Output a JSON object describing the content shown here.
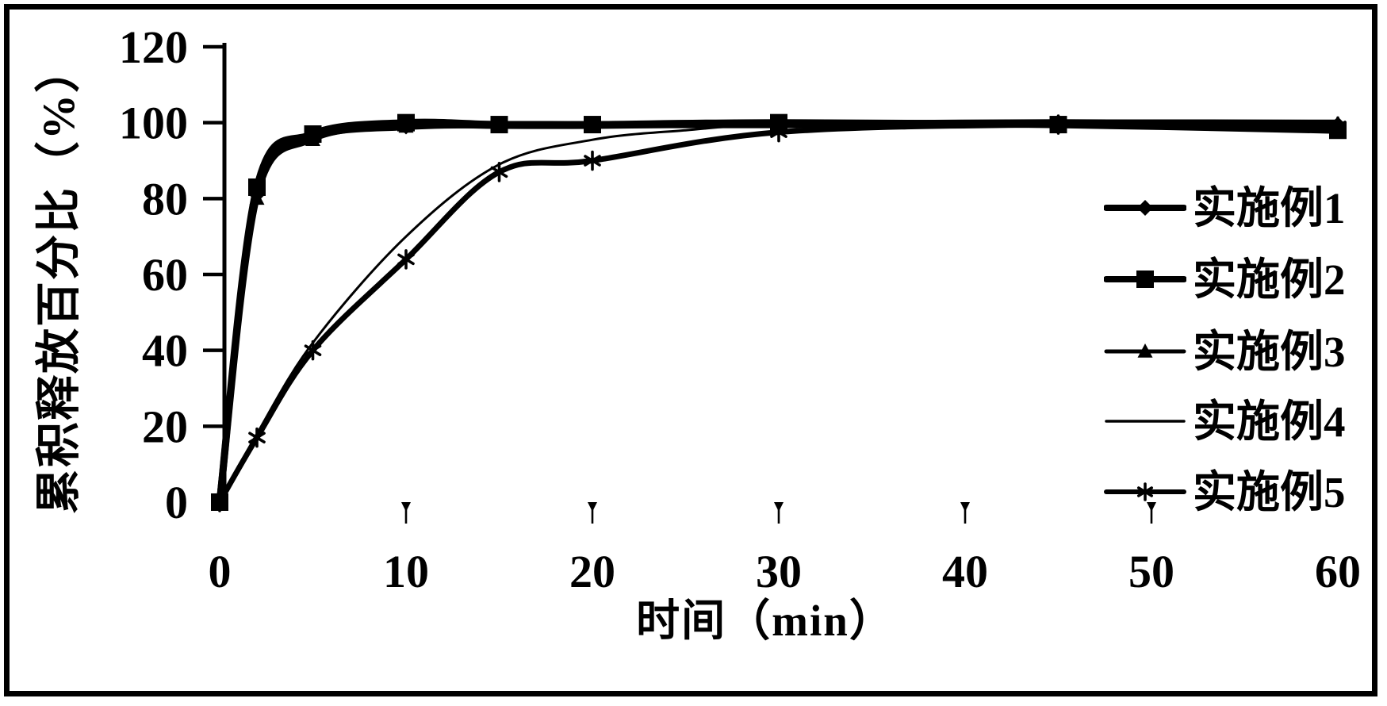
{
  "figure": {
    "y_axis_title": "累积释放百分比（%）",
    "x_axis_title": "时间（min）",
    "background_color": "#ffffff",
    "ink_color": "#000000"
  },
  "legend": {
    "position": "right",
    "items": [
      {
        "label": "实施例1",
        "marker": "diamond"
      },
      {
        "label": "实施例2",
        "marker": "square"
      },
      {
        "label": "实施例3",
        "marker": "triangle"
      },
      {
        "label": "实施例4",
        "marker": "none"
      },
      {
        "label": "实施例5",
        "marker": "star"
      }
    ]
  },
  "chart_data": {
    "type": "line",
    "title": "",
    "xlabel": "时间（min）",
    "ylabel": "累积释放百分比（%）",
    "xlim": [
      0,
      60
    ],
    "ylim": [
      0,
      120
    ],
    "x_ticks": [
      0,
      10,
      20,
      30,
      40,
      50,
      60
    ],
    "y_ticks": [
      0,
      20,
      40,
      60,
      80,
      100,
      120
    ],
    "grid": false,
    "legend_position": "right-inside",
    "series": [
      {
        "name": "实施例1",
        "marker": "diamond",
        "color": "#000000",
        "line": "thick",
        "x": [
          0,
          2,
          5,
          10,
          15,
          20,
          30,
          45,
          60
        ],
        "y": [
          0,
          81,
          96,
          99,
          99.5,
          99.5,
          99.5,
          100,
          99.5
        ]
      },
      {
        "name": "实施例2",
        "marker": "square",
        "color": "#000000",
        "line": "thick",
        "x": [
          0,
          2,
          5,
          10,
          15,
          20,
          30,
          45,
          60
        ],
        "y": [
          0,
          83,
          97,
          100,
          99.5,
          99.5,
          100,
          99.5,
          98
        ]
      },
      {
        "name": "实施例3",
        "marker": "triangle",
        "color": "#000000",
        "line": "medium",
        "x": [
          0,
          2,
          5,
          10,
          15,
          20,
          30,
          45,
          60
        ],
        "y": [
          0,
          80,
          95.5,
          99,
          99,
          99,
          99.5,
          100,
          99
        ]
      },
      {
        "name": "实施例4",
        "marker": "none",
        "color": "#000000",
        "line": "thin",
        "x": [
          0,
          2,
          5,
          10,
          15,
          20,
          25,
          30,
          45,
          60
        ],
        "y": [
          0,
          18,
          42,
          70,
          89,
          95.5,
          98,
          99.5,
          100.5,
          100.5
        ]
      },
      {
        "name": "实施例5",
        "marker": "star",
        "color": "#000000",
        "line": "medium-thick",
        "x": [
          0,
          2,
          5,
          10,
          15,
          20,
          30,
          45,
          60
        ],
        "y": [
          0,
          17,
          40,
          64,
          87,
          90,
          97.5,
          99.5,
          99
        ]
      }
    ]
  }
}
